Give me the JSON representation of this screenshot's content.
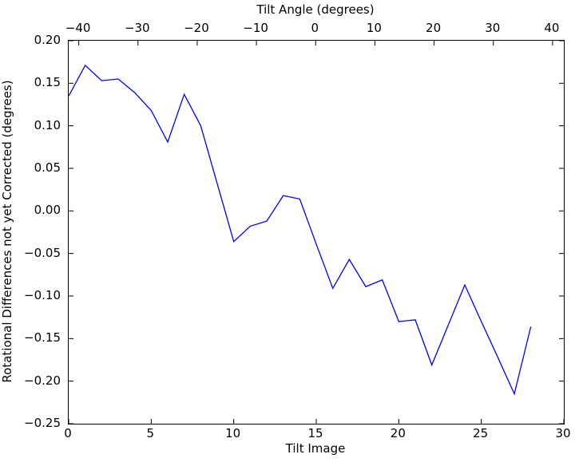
{
  "figure": {
    "background_color": "#ffffff",
    "spine_color": "#000000",
    "text_color": "#000000"
  },
  "chart_data": {
    "type": "line",
    "title": "",
    "top_xlabel": "Tilt Angle (degrees)",
    "bottom_xlabel": "Tilt Image",
    "ylabel": "Rotational Differences not yet Corrected (degrees)",
    "line_color": "#0000ff",
    "grid": false,
    "legend": "none",
    "bottom_xlim": [
      0,
      30
    ],
    "top_xlim": [
      -41.7,
      41.9
    ],
    "ylim": [
      -0.25,
      0.2
    ],
    "bottom_xticks": [
      0,
      5,
      10,
      15,
      20,
      25,
      30
    ],
    "top_xticks": [
      -40,
      -30,
      -20,
      -10,
      0,
      10,
      20,
      30,
      40
    ],
    "yticks": [
      0.2,
      0.15,
      0.1,
      0.05,
      0.0,
      -0.05,
      -0.1,
      -0.15,
      -0.2,
      -0.25
    ],
    "x": [
      0,
      1,
      2,
      3,
      4,
      5,
      6,
      7,
      8,
      9,
      10,
      11,
      12,
      13,
      14,
      15,
      16,
      17,
      18,
      19,
      20,
      21,
      22,
      23,
      24,
      25,
      26,
      27,
      28
    ],
    "y": [
      0.135,
      0.171,
      0.153,
      0.155,
      0.139,
      0.118,
      0.081,
      0.137,
      0.1,
      0.032,
      -0.036,
      -0.018,
      -0.012,
      0.018,
      0.014,
      -0.039,
      -0.091,
      -0.057,
      -0.089,
      -0.081,
      -0.13,
      -0.128,
      -0.181,
      -0.134,
      -0.087,
      -0.13,
      -0.172,
      -0.215,
      -0.136
    ]
  }
}
